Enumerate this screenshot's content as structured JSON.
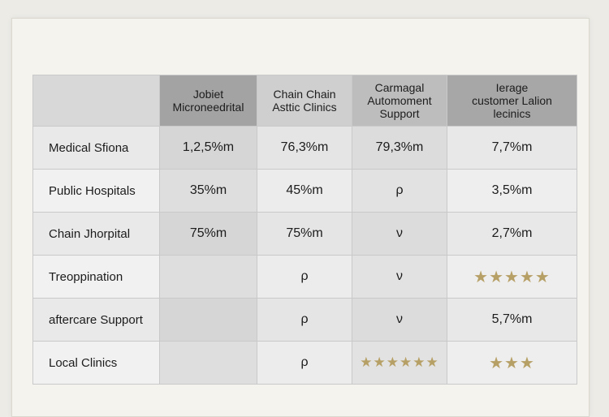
{
  "table": {
    "headers": [
      "",
      "Jobiet\nMicroneedrital",
      "Chain Chain\nAsttic Clinics",
      "Carmagal\nAutomoment\nSupport",
      "Ierage\ncustomer Lalion\nlecinics"
    ],
    "rows": [
      {
        "label": "Medical Sfiona",
        "cells": [
          "1,2,5%m",
          "76,3%m",
          "79,3%m",
          "7,7%m"
        ]
      },
      {
        "label": "Public Hospitals",
        "cells": [
          "35%m",
          "45%m",
          "ρ",
          "3,5%m"
        ]
      },
      {
        "label": "Chain Jhorpital",
        "cells": [
          "75%m",
          "75%m",
          "ν",
          "2,7%m"
        ]
      },
      {
        "label": "Treoppination",
        "cells": [
          "",
          "ρ",
          "ν",
          "★★★★★"
        ]
      },
      {
        "label": "aftercare Support",
        "cells": [
          "",
          "ρ",
          "ν",
          "5,7%m"
        ]
      },
      {
        "label": "Local Clinics",
        "cells": [
          "",
          "ρ",
          "★★★★★★",
          "★★★"
        ]
      }
    ]
  },
  "colors": {
    "star": "#b7a066",
    "header_dark": "#a3a3a3",
    "cell_light": "#e3e3e3"
  }
}
